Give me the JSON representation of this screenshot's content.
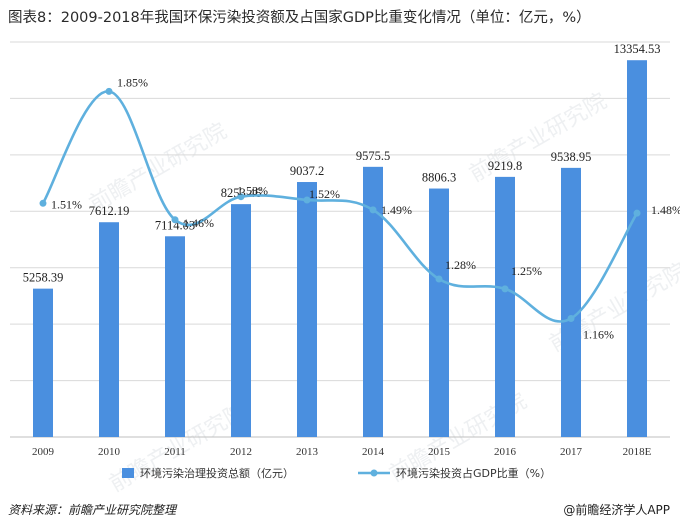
{
  "title": "图表8：2009-2018年我国环保污染投资额及占国家GDP比重变化情况（单位：亿元，%）",
  "source": "资料来源：前瞻产业研究院整理",
  "brand": "@前瞻经济学人APP",
  "watermark": "前瞻产业研究院",
  "colors": {
    "bar": "#4a8fdf",
    "line": "#5fb0de",
    "grid": "#d9d9d9",
    "text": "#333333"
  },
  "chart_data": {
    "type": "bar",
    "categories": [
      "2009",
      "2010",
      "2011",
      "2012",
      "2013",
      "2014",
      "2015",
      "2016",
      "2017",
      "2018E"
    ],
    "series": [
      {
        "name": "环境污染治理投资总额（亿元）",
        "type": "bar",
        "axis": "left",
        "values": [
          5258.39,
          7612.19,
          7114.03,
          8253.46,
          9037.2,
          9575.5,
          8806.3,
          9219.8,
          9538.95,
          13354.53
        ],
        "labels": [
          "5258.39",
          "7612.19",
          "7114.03",
          "8253.46",
          "9037.2",
          "9575.5",
          "8806.3",
          "9219.8",
          "9538.95",
          "13354.53"
        ]
      },
      {
        "name": "环境污染投资占GDP比重（%）",
        "type": "line",
        "axis": "right",
        "values": [
          1.51,
          1.85,
          1.46,
          1.53,
          1.52,
          1.49,
          1.28,
          1.25,
          1.16,
          1.48
        ],
        "labels": [
          "1.51%",
          "1.85%",
          "1.46%",
          "1.53%",
          "1.52%",
          "1.49%",
          "1.28%",
          "1.25%",
          "1.16%",
          "1.48%"
        ]
      }
    ],
    "ylim_left": [
      0,
      14000
    ],
    "ylim_right": [
      0.8,
      2.0
    ],
    "grid": true,
    "legend": "bottom"
  }
}
